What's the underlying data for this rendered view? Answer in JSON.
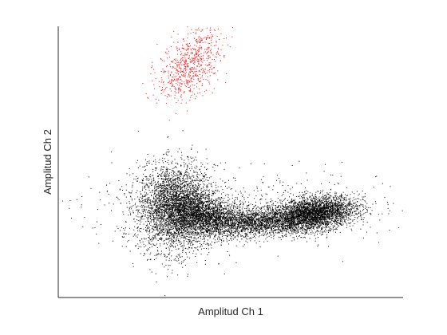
{
  "chart_data": {
    "type": "scatter",
    "title": "",
    "xlabel": "Amplitud Ch 1",
    "ylabel": "Amplitud Ch 2",
    "xlim": [
      0,
      1
    ],
    "ylim": [
      0,
      1
    ],
    "x_ticks": [],
    "y_ticks": [],
    "grid": false,
    "legend": "none",
    "box": "left-bottom",
    "series": [
      {
        "color": "#ff0000",
        "marker": "dot",
        "count": 700,
        "clusters": [
          {
            "center": [
              0.38,
              0.86
            ],
            "spread": [
              0.045,
              0.06
            ],
            "weight": 1.0,
            "tilt": 0.5
          }
        ]
      },
      {
        "color": "#000000",
        "marker": "dot",
        "count": 11000,
        "clusters": [
          {
            "center": [
              0.34,
              0.33
            ],
            "spread": [
              0.055,
              0.08
            ],
            "weight": 0.32,
            "tilt": 0.0
          },
          {
            "center": [
              0.43,
              0.3
            ],
            "spread": [
              0.06,
              0.035
            ],
            "weight": 0.18,
            "tilt": -0.3
          },
          {
            "center": [
              0.58,
              0.28
            ],
            "spread": [
              0.07,
              0.025
            ],
            "weight": 0.14,
            "tilt": 0.1
          },
          {
            "center": [
              0.74,
              0.31
            ],
            "spread": [
              0.06,
              0.03
            ],
            "weight": 0.3,
            "tilt": 0.3
          },
          {
            "center": [
              0.5,
              0.33
            ],
            "spread": [
              0.22,
              0.07
            ],
            "weight": 0.06,
            "tilt": 0.0
          }
        ]
      }
    ]
  }
}
